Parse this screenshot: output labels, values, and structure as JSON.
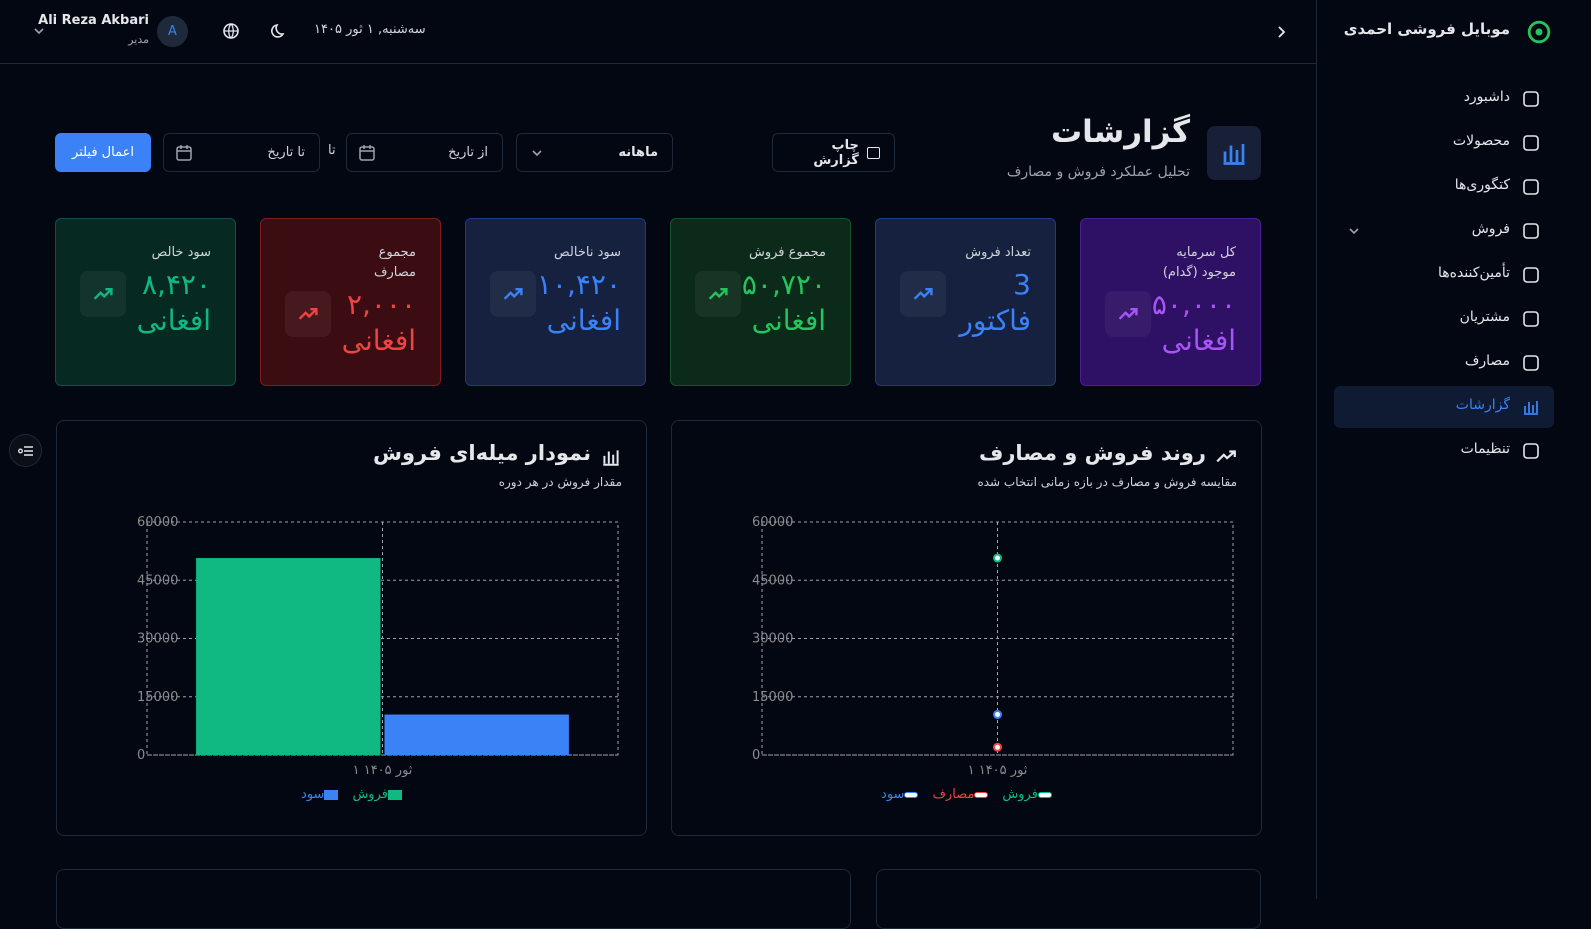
{
  "sidebar": {
    "brand": "موبایل فروشی احمدی",
    "nav": [
      {
        "label": "داشبورد"
      },
      {
        "label": "محصولات"
      },
      {
        "label": "کتگوری‌ها"
      },
      {
        "label": "فروش"
      },
      {
        "label": "تأمین‌کننده‌ها"
      },
      {
        "label": "مشتریان"
      },
      {
        "label": "مصارف"
      },
      {
        "label": "گزارشات",
        "active": true
      },
      {
        "label": "تنظیمات"
      }
    ]
  },
  "header": {
    "user_name": "Ali Reza Akbari",
    "user_role": "مدیر",
    "avatar": "A",
    "date": "سه‌شنبه, ۱ ثور ۱۴۰۵"
  },
  "page": {
    "title": "گزارشات",
    "subtitle": "تحلیل عملکرد فروش و مصارف"
  },
  "toolbar": {
    "print": "چاپ گزارش",
    "period": "ماهانه",
    "from": "از تاریخ",
    "to_sep": "تا",
    "to": "تا تاریخ",
    "apply": "اعمال فیلتر"
  },
  "stats": [
    {
      "label": "کل سرمایه موجود (گدام)",
      "value": "۵۰,۰۰۰",
      "unit": "افغانی",
      "color": "#a855f7",
      "bg": "#2e1065",
      "border": "#4c1d95"
    },
    {
      "label": "تعداد فروش",
      "value": "3",
      "unit": "فاکتور",
      "color": "#3b82f6",
      "bg": "#15213f",
      "border": "#1e3a8a"
    },
    {
      "label": "مجموع فروش",
      "value": "۵۰,۷۲۰",
      "unit": "افغانی",
      "color": "#22c55e",
      "bg": "#0b2a1a",
      "border": "#14532d"
    },
    {
      "label": "سود ناخالص",
      "value": "۱۰,۴۲۰",
      "unit": "افغانی",
      "color": "#3b82f6",
      "bg": "#15213f",
      "border": "#1e3a8a"
    },
    {
      "label": "مجموع مصارف",
      "value": "۲,۰۰۰",
      "unit": "افغانی",
      "color": "#ef4444",
      "bg": "#3b0d12",
      "border": "#7f1d1d"
    },
    {
      "label": "سود خالص",
      "value": "۸,۴۲۰",
      "unit": "افغانی",
      "color": "#10b981",
      "bg": "#062a22",
      "border": "#134e4a"
    }
  ],
  "chart_data": [
    {
      "type": "line",
      "title": "روند فروش و مصارف",
      "subtitle": "مقایسه فروش و مصارف در بازه زمانی انتخاب شده",
      "categories": [
        "۱ ثور ۱۴۰۵"
      ],
      "series": [
        {
          "name": "فروش",
          "color": "#10b981",
          "values": [
            50720
          ]
        },
        {
          "name": "مصارف",
          "color": "#ef4444",
          "values": [
            2000
          ]
        },
        {
          "name": "سود",
          "color": "#3b82f6",
          "values": [
            10420
          ]
        }
      ],
      "ylim": [
        0,
        60000
      ],
      "yticks": [
        0,
        15000,
        30000,
        45000,
        60000
      ],
      "grid": true
    },
    {
      "type": "bar",
      "title": "نمودار میله‌ای فروش",
      "subtitle": "مقدار فروش در هر دوره",
      "categories": [
        "۱ ثور ۱۴۰۵"
      ],
      "series": [
        {
          "name": "فروش",
          "color": "#10b981",
          "values": [
            50720
          ]
        },
        {
          "name": "سود",
          "color": "#3b82f6",
          "values": [
            10420
          ]
        }
      ],
      "ylim": [
        0,
        60000
      ],
      "yticks": [
        0,
        15000,
        30000,
        45000,
        60000
      ],
      "grid": true
    }
  ]
}
